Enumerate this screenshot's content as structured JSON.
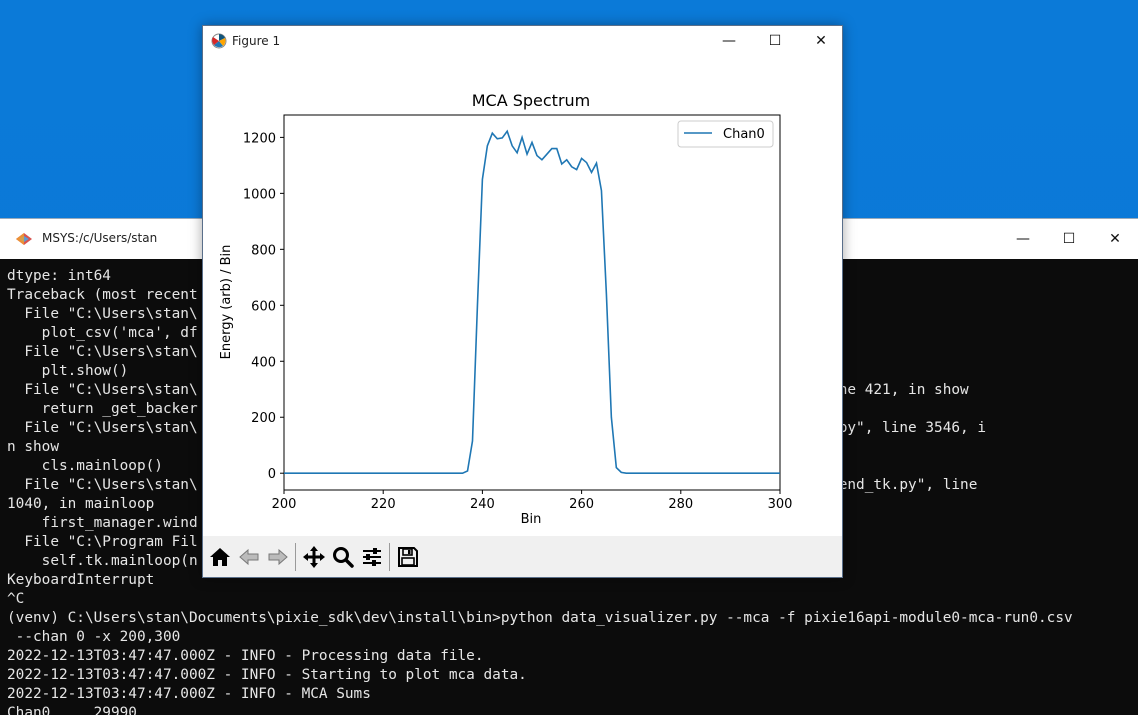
{
  "terminal": {
    "title": "MSYS:/c/Users/stan",
    "lines": [
      "dtype: int64",
      "Traceback (most recent call last):",
      "  File \"C:\\Users\\stan\\                                                             module>",
      "    plot_csv('mca', df",
      "  File \"C:\\Users\\stan\\                                                             lot_csv",
      "    plt.show()",
      "  File \"C:\\Users\\stan\\                                                             yplot.py\", line 421, in show",
      "    return _get_backer",
      "  File \"C:\\Users\\stan\\                                                             ackend_bases.py\", line 3546, i",
      "n show",
      "    cls.mainloop()",
      "  File \"C:\\Users\\stan\\                                                             ackends\\_backend_tk.py\", line",
      "1040, in mainloop",
      "    first_manager.wind",
      "  File \"C:\\Program Fil",
      "    self.tk.mainloop(n",
      "KeyboardInterrupt",
      "^C",
      "(venv) C:\\Users\\stan\\Documents\\pixie_sdk\\dev\\install\\bin>python data_visualizer.py --mca -f pixie16api-module0-mca-run0.csv",
      " --chan 0 -x 200,300",
      "2022-12-13T03:47:47.000Z - INFO - Processing data file.",
      "2022-12-13T03:47:47.000Z - INFO - Starting to plot mca data.",
      "2022-12-13T03:47:47.000Z - INFO - MCA Sums",
      "Chan0     29990"
    ]
  },
  "figure": {
    "title": "Figure 1",
    "toolbar": [
      "home-icon",
      "back-icon",
      "forward-icon",
      "pan-icon",
      "zoom-icon",
      "configure-icon",
      "save-icon"
    ]
  },
  "chart_data": {
    "type": "line",
    "title": "MCA Spectrum",
    "xlabel": "Bin",
    "ylabel": "Energy (arb) / Bin",
    "xlim": [
      200,
      300
    ],
    "ylim": [
      -60,
      1280
    ],
    "xticks": [
      200,
      220,
      240,
      260,
      280,
      300
    ],
    "yticks": [
      0,
      200,
      400,
      600,
      800,
      1000,
      1200
    ],
    "legend_position": "top-right",
    "series": [
      {
        "name": "Chan0",
        "color": "#1f77b4",
        "x": [
          200,
          201,
          202,
          203,
          204,
          205,
          206,
          207,
          208,
          209,
          210,
          211,
          212,
          213,
          214,
          215,
          216,
          217,
          218,
          219,
          220,
          221,
          222,
          223,
          224,
          225,
          226,
          227,
          228,
          229,
          230,
          231,
          232,
          233,
          234,
          235,
          236,
          237,
          238,
          239,
          240,
          241,
          242,
          243,
          244,
          245,
          246,
          247,
          248,
          249,
          250,
          251,
          252,
          253,
          254,
          255,
          256,
          257,
          258,
          259,
          260,
          261,
          262,
          263,
          264,
          265,
          266,
          267,
          268,
          269,
          270,
          271,
          272,
          273,
          274,
          275,
          276,
          277,
          278,
          279,
          280,
          281,
          282,
          283,
          284,
          285,
          286,
          287,
          288,
          289,
          290,
          291,
          292,
          293,
          294,
          295,
          296,
          297,
          298,
          299,
          300
        ],
        "y": [
          0,
          0,
          0,
          0,
          0,
          0,
          0,
          0,
          0,
          0,
          0,
          0,
          0,
          0,
          0,
          0,
          0,
          0,
          0,
          0,
          0,
          0,
          0,
          0,
          0,
          0,
          0,
          0,
          0,
          0,
          0,
          0,
          0,
          0,
          0,
          0,
          0,
          8,
          115,
          600,
          1050,
          1170,
          1215,
          1195,
          1198,
          1222,
          1170,
          1145,
          1200,
          1140,
          1182,
          1135,
          1120,
          1140,
          1160,
          1160,
          1105,
          1120,
          1095,
          1085,
          1125,
          1110,
          1075,
          1108,
          1010,
          640,
          200,
          20,
          3,
          0,
          0,
          0,
          0,
          0,
          0,
          0,
          0,
          0,
          0,
          0,
          0,
          0,
          0,
          0,
          0,
          0,
          0,
          0,
          0,
          0,
          0,
          0,
          0,
          0,
          0,
          0,
          0,
          0,
          0,
          0,
          0
        ]
      }
    ]
  }
}
